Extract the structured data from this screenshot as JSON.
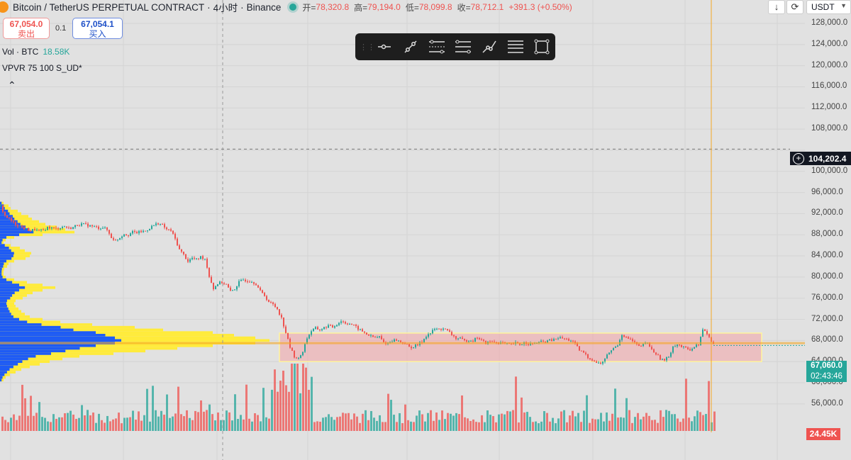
{
  "header": {
    "symbol": "Bitcoin / TetherUS PERPETUAL CONTRACT",
    "sep1": "·",
    "interval": "4小时",
    "sep2": "·",
    "exchange": "Binance",
    "open_label": "开=",
    "open": "78,320.8",
    "high_label": "高=",
    "high": "79,194.0",
    "low_label": "低=",
    "low": "78,099.8",
    "close_label": "收=",
    "close": "78,712.1",
    "change": "+391.3 (+0.50%)"
  },
  "trade": {
    "sell_price": "67,054.0",
    "sell_label": "卖出",
    "spread": "0.1",
    "buy_price": "67,054.1",
    "buy_label": "买入"
  },
  "legend": {
    "volume_label": "Vol · BTC",
    "volume_value": "18.58K",
    "vpvr_label": "VPVR 75 100 S_UD*"
  },
  "icons": {
    "collapse": "chevron-up-icon",
    "download": "download-arrow-icon",
    "sync": "refresh-icon",
    "currency_chevron": "chevron-down-icon"
  },
  "currency": "USDT",
  "drawing_tools": [
    "horizontal-ray-tool",
    "trend-line-tool",
    "parallel-channel-tool",
    "regression-trend-tool",
    "info-line-tool",
    "fib-retracement-tool",
    "rectangle-tool"
  ],
  "price_axis": {
    "labels": [
      "128,000.0",
      "124,000.0",
      "120,000.0",
      "116,000.0",
      "112,000.0",
      "108,000.0",
      "100,000.0",
      "96,000.0",
      "92,000.0",
      "88,000.0",
      "84,000.0",
      "80,000.0",
      "76,000.0",
      "72,000.0",
      "68,000.0",
      "64,000.0",
      "60,000.0",
      "56,000.0"
    ],
    "crosshair_price": "104,202.4",
    "last_price": "67,060.0",
    "countdown": "02:43:46",
    "volume_badge": "24.45K"
  },
  "colors": {
    "up": "#26a69a",
    "down": "#ef5350",
    "vpvr_up": "#1e5bf5",
    "vpvr_down": "#ffeb3b",
    "zone_fill": "#f4a4a8",
    "zone_border": "#fff59d",
    "poc_line": "#f5a623",
    "time_cursor": "#f5a623",
    "background": "#e1e1e1"
  },
  "chart_data": {
    "type": "candlestick",
    "title": "Bitcoin / TetherUS PERPETUAL CONTRACT · 4小时 · Binance",
    "ylim": [
      54000,
      130000
    ],
    "close_path": [
      [
        0,
        93400
      ],
      [
        6,
        91600
      ],
      [
        12,
        91000
      ],
      [
        18,
        90200
      ],
      [
        24,
        89800
      ],
      [
        30,
        89400
      ],
      [
        36,
        89000
      ],
      [
        42,
        88800
      ],
      [
        48,
        89000
      ],
      [
        54,
        88700
      ],
      [
        60,
        88800
      ],
      [
        66,
        89400
      ],
      [
        72,
        89300
      ],
      [
        78,
        89100
      ],
      [
        84,
        89400
      ],
      [
        90,
        89600
      ],
      [
        96,
        89200
      ],
      [
        102,
        89400
      ],
      [
        108,
        89900
      ],
      [
        114,
        90000
      ],
      [
        120,
        89900
      ],
      [
        126,
        89700
      ],
      [
        132,
        89500
      ],
      [
        138,
        89300
      ],
      [
        144,
        89400
      ],
      [
        150,
        88900
      ],
      [
        156,
        87500
      ],
      [
        162,
        86900
      ],
      [
        168,
        87500
      ],
      [
        174,
        88200
      ],
      [
        180,
        88000
      ],
      [
        186,
        88500
      ],
      [
        192,
        88400
      ],
      [
        198,
        88600
      ],
      [
        204,
        88700
      ],
      [
        210,
        89300
      ],
      [
        216,
        89800
      ],
      [
        222,
        90200
      ],
      [
        228,
        89800
      ],
      [
        234,
        89000
      ],
      [
        240,
        88800
      ],
      [
        246,
        87200
      ],
      [
        252,
        85200
      ],
      [
        258,
        84200
      ],
      [
        264,
        83000
      ],
      [
        270,
        83600
      ],
      [
        276,
        83300
      ],
      [
        282,
        83800
      ],
      [
        288,
        83500
      ],
      [
        294,
        80200
      ],
      [
        300,
        77800
      ],
      [
        306,
        78800
      ],
      [
        312,
        79000
      ],
      [
        318,
        78600
      ],
      [
        324,
        77200
      ],
      [
        330,
        77800
      ],
      [
        336,
        79000
      ],
      [
        342,
        79500
      ],
      [
        348,
        79300
      ],
      [
        354,
        79200
      ],
      [
        360,
        78700
      ],
      [
        366,
        77300
      ],
      [
        372,
        76500
      ],
      [
        378,
        75300
      ],
      [
        384,
        74800
      ],
      [
        390,
        74000
      ],
      [
        396,
        72200
      ],
      [
        402,
        69500
      ],
      [
        408,
        66700
      ],
      [
        414,
        65000
      ],
      [
        420,
        64500
      ],
      [
        426,
        66000
      ],
      [
        432,
        68500
      ],
      [
        438,
        69800
      ],
      [
        444,
        70300
      ],
      [
        450,
        70000
      ],
      [
        456,
        70400
      ],
      [
        462,
        70800
      ],
      [
        468,
        70500
      ],
      [
        474,
        71100
      ],
      [
        480,
        71700
      ],
      [
        486,
        71300
      ],
      [
        492,
        71200
      ],
      [
        498,
        70800
      ],
      [
        504,
        70200
      ],
      [
        510,
        69700
      ],
      [
        516,
        69200
      ],
      [
        522,
        68800
      ],
      [
        528,
        68500
      ],
      [
        534,
        68700
      ],
      [
        540,
        67600
      ],
      [
        546,
        67500
      ],
      [
        552,
        68000
      ],
      [
        558,
        68100
      ],
      [
        564,
        67700
      ],
      [
        570,
        67500
      ],
      [
        576,
        66700
      ],
      [
        582,
        66800
      ],
      [
        588,
        67200
      ],
      [
        594,
        67800
      ],
      [
        600,
        68900
      ],
      [
        606,
        69400
      ],
      [
        612,
        70200
      ],
      [
        618,
        70100
      ],
      [
        624,
        70300
      ],
      [
        630,
        69800
      ],
      [
        636,
        69100
      ],
      [
        642,
        68400
      ],
      [
        648,
        68300
      ],
      [
        654,
        67900
      ],
      [
        660,
        68100
      ],
      [
        666,
        68000
      ],
      [
        672,
        68600
      ],
      [
        678,
        68000
      ],
      [
        684,
        67500
      ],
      [
        690,
        67800
      ],
      [
        696,
        67700
      ],
      [
        702,
        67600
      ],
      [
        708,
        67500
      ],
      [
        714,
        67300
      ],
      [
        720,
        67200
      ],
      [
        726,
        67500
      ],
      [
        732,
        67200
      ],
      [
        738,
        67600
      ],
      [
        744,
        67400
      ],
      [
        750,
        67300
      ],
      [
        756,
        67600
      ],
      [
        762,
        67700
      ],
      [
        768,
        67800
      ],
      [
        774,
        68000
      ],
      [
        780,
        68100
      ],
      [
        786,
        68500
      ],
      [
        792,
        68400
      ],
      [
        798,
        68200
      ],
      [
        804,
        68000
      ],
      [
        810,
        67300
      ],
      [
        816,
        66100
      ],
      [
        822,
        65700
      ],
      [
        828,
        64800
      ],
      [
        834,
        64400
      ],
      [
        840,
        63800
      ],
      [
        846,
        63600
      ],
      [
        852,
        64500
      ],
      [
        858,
        65800
      ],
      [
        864,
        66500
      ],
      [
        870,
        67200
      ],
      [
        876,
        69200
      ],
      [
        882,
        68500
      ],
      [
        888,
        68200
      ],
      [
        894,
        67500
      ],
      [
        900,
        66800
      ],
      [
        906,
        67200
      ],
      [
        912,
        67600
      ],
      [
        918,
        66200
      ],
      [
        924,
        65500
      ],
      [
        930,
        64600
      ],
      [
        936,
        64200
      ],
      [
        942,
        65000
      ],
      [
        948,
        66900
      ],
      [
        954,
        67300
      ],
      [
        960,
        66800
      ],
      [
        966,
        66500
      ],
      [
        972,
        66300
      ],
      [
        978,
        66800
      ],
      [
        984,
        67300
      ],
      [
        990,
        70000
      ],
      [
        996,
        69300
      ],
      [
        1002,
        67800
      ],
      [
        1006,
        67060
      ]
    ],
    "volume_profile": [
      [
        94000,
        5,
        0
      ],
      [
        93500,
        12,
        0
      ],
      [
        93000,
        15,
        0
      ],
      [
        92500,
        25,
        0
      ],
      [
        92000,
        30,
        0
      ],
      [
        91500,
        40,
        0
      ],
      [
        91000,
        45,
        0
      ],
      [
        90500,
        55,
        0
      ],
      [
        90000,
        64,
        0
      ],
      [
        89500,
        80,
        0
      ],
      [
        89000,
        92,
        0
      ],
      [
        88500,
        105,
        0
      ],
      [
        88000,
        60,
        0
      ],
      [
        87500,
        20,
        0
      ],
      [
        87000,
        8,
        0
      ],
      [
        86500,
        5,
        0
      ],
      [
        86000,
        15,
        0
      ],
      [
        85500,
        28,
        0
      ],
      [
        85000,
        35,
        0
      ],
      [
        84500,
        44,
        0
      ],
      [
        84000,
        42,
        0
      ],
      [
        83500,
        36,
        0
      ],
      [
        83000,
        20,
        0
      ],
      [
        82500,
        12,
        0
      ],
      [
        82000,
        10,
        0
      ],
      [
        81500,
        6,
        0
      ],
      [
        81000,
        5,
        0
      ],
      [
        80500,
        5,
        0
      ],
      [
        80000,
        8,
        0
      ],
      [
        79500,
        20,
        0
      ],
      [
        79000,
        38,
        0
      ],
      [
        78500,
        60,
        0
      ],
      [
        78000,
        78,
        0
      ],
      [
        77500,
        60,
        0
      ],
      [
        77000,
        46,
        0
      ],
      [
        76500,
        38,
        0
      ],
      [
        76000,
        32,
        0
      ],
      [
        75500,
        22,
        0
      ],
      [
        75000,
        20,
        0
      ],
      [
        74500,
        22,
        0
      ],
      [
        74000,
        26,
        0
      ],
      [
        73500,
        30,
        0
      ],
      [
        73000,
        35,
        0
      ],
      [
        72500,
        42,
        0
      ],
      [
        72000,
        60,
        0
      ],
      [
        71500,
        85,
        0
      ],
      [
        71000,
        130,
        0
      ],
      [
        70500,
        190,
        0
      ],
      [
        70000,
        230,
        0
      ],
      [
        69500,
        300,
        0
      ],
      [
        69000,
        330,
        0
      ],
      [
        68500,
        360,
        0
      ],
      [
        68000,
        380,
        0
      ],
      [
        67500,
        360,
        0
      ],
      [
        67000,
        300,
        0
      ],
      [
        66500,
        250,
        0
      ],
      [
        66000,
        205,
        0
      ],
      [
        65500,
        160,
        0
      ],
      [
        65000,
        112,
        0
      ],
      [
        64500,
        88,
        0
      ],
      [
        64000,
        70,
        0
      ],
      [
        63500,
        56,
        0
      ],
      [
        63000,
        42,
        0
      ],
      [
        62500,
        30,
        0
      ],
      [
        62000,
        22,
        0
      ],
      [
        61500,
        14,
        0
      ],
      [
        61000,
        8,
        0
      ],
      [
        60500,
        5,
        0
      ]
    ],
    "consolidation_zone": {
      "x_range": [
        394,
        1074
      ],
      "price_range": [
        64000,
        69400
      ]
    },
    "poc_price": 67500,
    "volume_ylim": [
      0,
      70
    ]
  }
}
